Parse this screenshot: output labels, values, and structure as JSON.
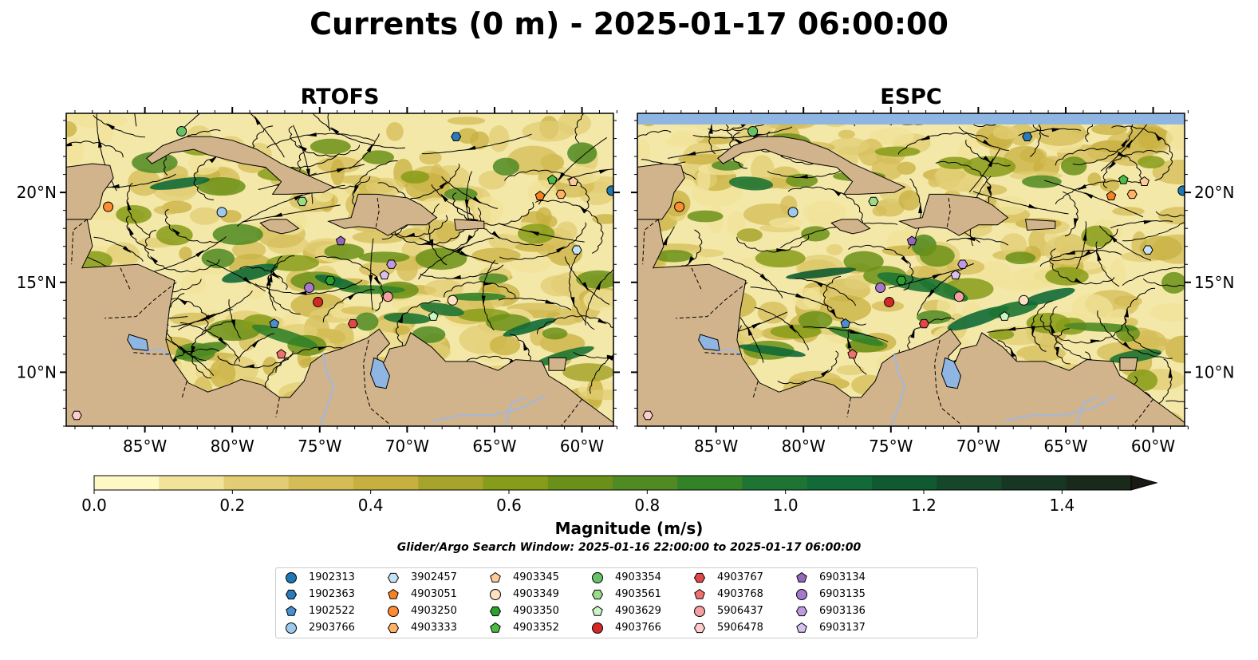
{
  "title": "Currents (0 m) - 2025-01-17 06:00:00",
  "panels": [
    {
      "title": "RTOFS",
      "water_top": false
    },
    {
      "title": "ESPC",
      "water_top": true
    }
  ],
  "axes": {
    "lon_ticks": [
      -85,
      -80,
      -75,
      -70,
      -65,
      -60
    ],
    "lon_labels": [
      "85°W",
      "80°W",
      "75°W",
      "70°W",
      "65°W",
      "60°W"
    ],
    "lat_ticks": [
      10,
      15,
      20
    ],
    "lat_labels": [
      "10°N",
      "15°N",
      "20°N"
    ],
    "lon_range": [
      -89.5,
      -58.2
    ],
    "lat_range": [
      7.0,
      24.4
    ]
  },
  "colorbar": {
    "label": "Magnitude (m/s)",
    "min": 0.0,
    "max": 1.5,
    "extend": "max",
    "tick_values": [
      0.0,
      0.2,
      0.4,
      0.6,
      0.8,
      1.0,
      1.2,
      1.4
    ],
    "tick_labels": [
      "0.0",
      "0.2",
      "0.4",
      "0.6",
      "0.8",
      "1.0",
      "1.2",
      "1.4"
    ],
    "colors": [
      "#fdf8c4",
      "#f1e39a",
      "#e2cd74",
      "#d4bc57",
      "#c8b040",
      "#a7a42d",
      "#879c19",
      "#6b9019",
      "#4f8a22",
      "#338228",
      "#1e7432",
      "#116a37",
      "#0f5a30",
      "#16472a",
      "#183624",
      "#1a2a1a"
    ]
  },
  "subtitle": "Glider/Argo Search Window: 2025-01-16 22:00:00 to 2025-01-17 06:00:00",
  "colors": {
    "land": "#d2b48c",
    "water": "#8fb6e3",
    "ocean_low": "#f3e8a8",
    "river": "#a0b8e0"
  },
  "floats": [
    {
      "id": "1902313",
      "marker": "circle",
      "color": "#1f77b4",
      "lon": -58.3,
      "lat": 20.1
    },
    {
      "id": "1902363",
      "marker": "hexagon",
      "color": "#2b7bba",
      "lon": -67.2,
      "lat": 23.1
    },
    {
      "id": "1902522",
      "marker": "pentagon",
      "color": "#4a8fd0",
      "lon": -77.6,
      "lat": 12.7
    },
    {
      "id": "2903766",
      "marker": "circle",
      "color": "#9ec9ef",
      "lon": -80.6,
      "lat": 18.9
    },
    {
      "id": "3902457",
      "marker": "hexagon",
      "color": "#c6e2f7",
      "lon": -60.3,
      "lat": 16.8
    },
    {
      "id": "4903051",
      "marker": "pentagon",
      "color": "#f58220",
      "lon": -62.4,
      "lat": 19.8
    },
    {
      "id": "4903250",
      "marker": "circle",
      "color": "#ff8c33",
      "lon": -87.1,
      "lat": 19.2
    },
    {
      "id": "4903333",
      "marker": "hexagon",
      "color": "#ffb166",
      "lon": -61.2,
      "lat": 19.9
    },
    {
      "id": "4903345",
      "marker": "pentagon",
      "color": "#ffcc99",
      "lon": -60.5,
      "lat": 20.6
    },
    {
      "id": "4903349",
      "marker": "circle",
      "color": "#ffe0c0",
      "lon": -67.4,
      "lat": 14.0
    },
    {
      "id": "4903350",
      "marker": "hexagon",
      "color": "#2ca02c",
      "lon": -74.4,
      "lat": 15.1
    },
    {
      "id": "4903352",
      "marker": "pentagon",
      "color": "#4cbb44",
      "lon": -61.7,
      "lat": 20.7
    },
    {
      "id": "4903354",
      "marker": "circle",
      "color": "#66c266",
      "lon": -82.9,
      "lat": 23.4
    },
    {
      "id": "4903561",
      "marker": "hexagon",
      "color": "#99dd88",
      "lon": -76.0,
      "lat": 19.5
    },
    {
      "id": "4903629",
      "marker": "pentagon",
      "color": "#ccf5c4",
      "lon": -68.5,
      "lat": 13.1
    },
    {
      "id": "4903766",
      "marker": "circle",
      "color": "#d62728",
      "lon": -75.1,
      "lat": 13.9
    },
    {
      "id": "4903767",
      "marker": "hexagon",
      "color": "#e04848",
      "lon": -73.1,
      "lat": 12.7
    },
    {
      "id": "4903768",
      "marker": "pentagon",
      "color": "#f07070",
      "lon": -77.2,
      "lat": 11.0
    },
    {
      "id": "5906437",
      "marker": "circle",
      "color": "#f4a0a0",
      "lon": -71.1,
      "lat": 14.2
    },
    {
      "id": "5906478",
      "marker": "hexagon",
      "color": "#ffcccc",
      "lon": -88.9,
      "lat": 7.6
    },
    {
      "id": "6903134",
      "marker": "pentagon",
      "color": "#9467bd",
      "lon": -73.8,
      "lat": 17.3
    },
    {
      "id": "6903135",
      "marker": "circle",
      "color": "#a678cc",
      "lon": -75.6,
      "lat": 14.7
    },
    {
      "id": "6903136",
      "marker": "hexagon",
      "color": "#c09ae0",
      "lon": -70.9,
      "lat": 16.0
    },
    {
      "id": "6903137",
      "marker": "pentagon",
      "color": "#d8c0f0",
      "lon": -71.3,
      "lat": 15.4
    }
  ]
}
